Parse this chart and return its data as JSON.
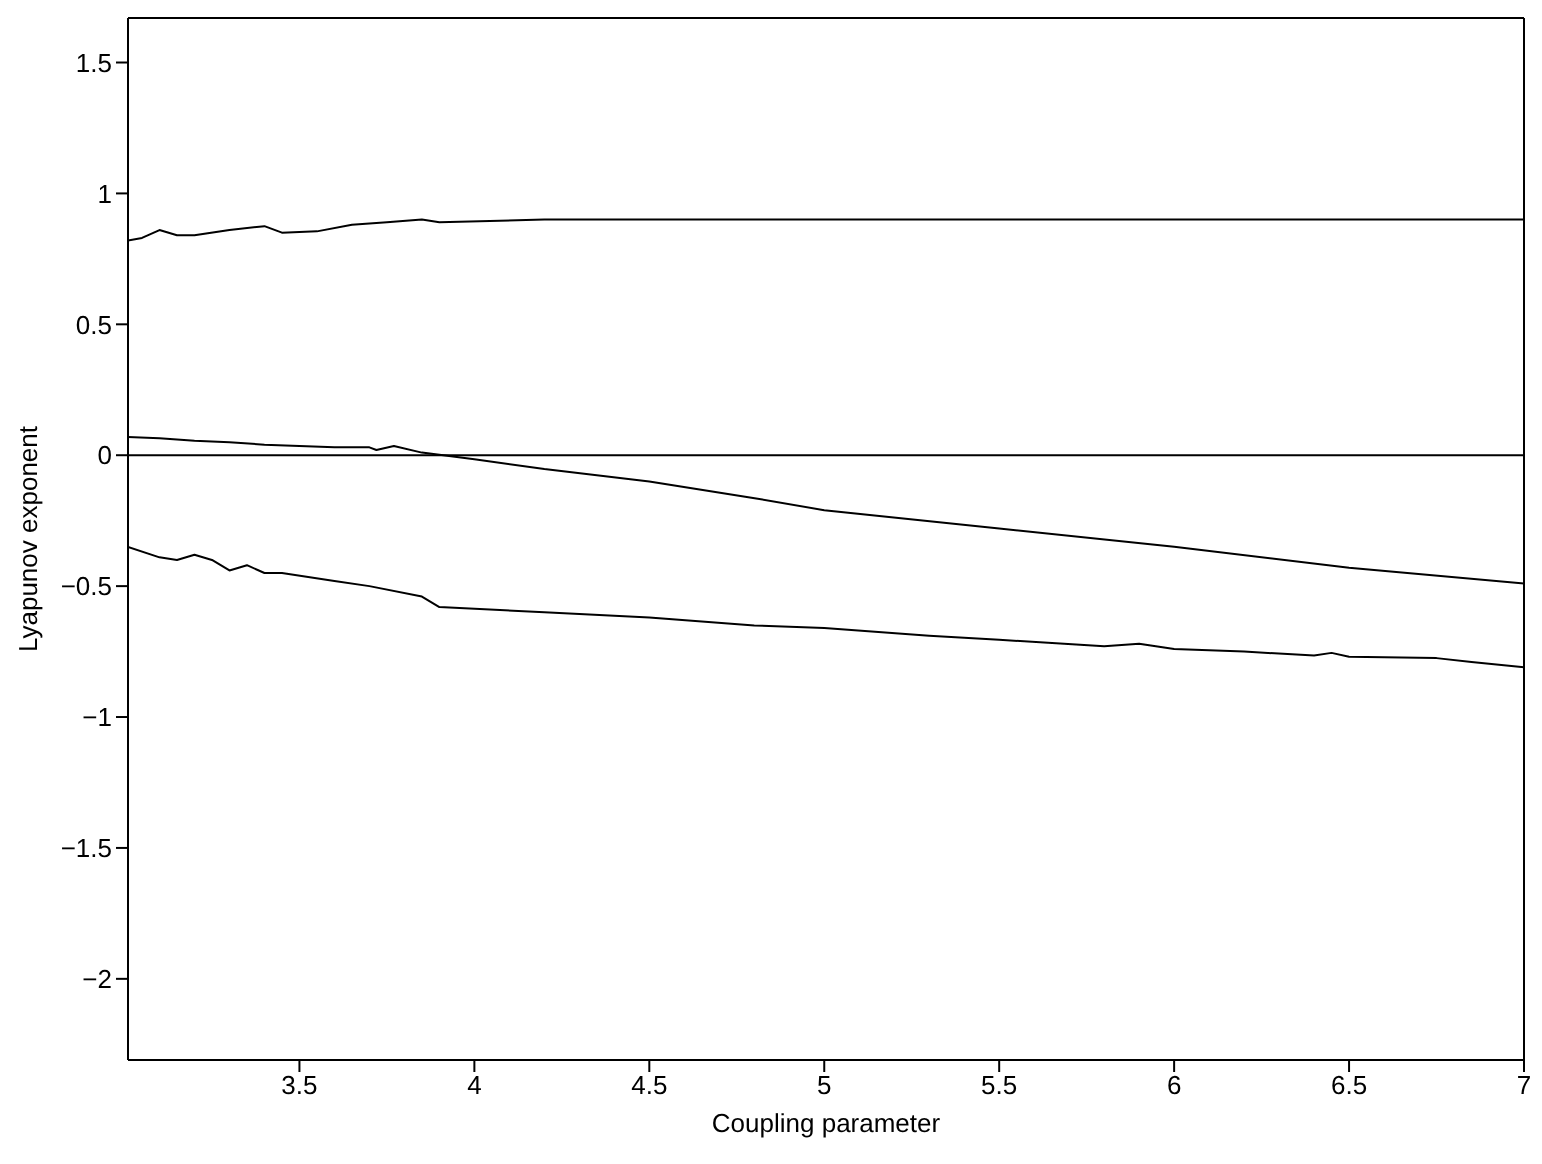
{
  "chart_data": {
    "type": "line",
    "xlabel": "Coupling parameter",
    "ylabel": "Lyapunov exponent",
    "xlim": [
      3.01,
      7
    ],
    "ylim": [
      -2.31,
      1.67
    ],
    "xticks": [
      3.5,
      4,
      4.5,
      5,
      5.5,
      6,
      6.5,
      7
    ],
    "yticks": [
      -2,
      -1.5,
      -1,
      -0.5,
      0,
      0.5,
      1,
      1.5
    ],
    "grid": false,
    "marker": "none",
    "line_style": "solid",
    "ref_lines": [
      {
        "axis": "y",
        "value": 0,
        "color": "#000000"
      }
    ],
    "series": [
      {
        "color": "#000000",
        "x": [
          3.01,
          3.05,
          3.1,
          3.15,
          3.2,
          3.3,
          3.4,
          3.45,
          3.55,
          3.65,
          3.75,
          3.85,
          3.9,
          4.2,
          4.5,
          5,
          5.5,
          6,
          6.5,
          7
        ],
        "values": [
          0.82,
          0.83,
          0.86,
          0.84,
          0.84,
          0.86,
          0.875,
          0.85,
          0.855,
          0.88,
          0.89,
          0.9,
          0.89,
          0.9,
          0.9,
          0.9,
          0.9,
          0.9,
          0.9,
          0.9
        ]
      },
      {
        "color": "#000000",
        "x": [
          3.01,
          3.1,
          3.2,
          3.3,
          3.4,
          3.5,
          3.6,
          3.7,
          3.72,
          3.77,
          3.85,
          4,
          4.2,
          4.5,
          4.81,
          5,
          5.5,
          6,
          6.5,
          7
        ],
        "values": [
          0.07,
          0.065,
          0.055,
          0.05,
          0.04,
          0.035,
          0.03,
          0.03,
          0.02,
          0.035,
          0.01,
          -0.015,
          -0.053,
          -0.1,
          -0.166,
          -0.21,
          -0.28,
          -0.35,
          -0.43,
          -0.49
        ]
      },
      {
        "color": "#000000",
        "x": [
          3.01,
          3.1,
          3.15,
          3.2,
          3.25,
          3.3,
          3.35,
          3.4,
          3.45,
          3.6,
          3.7,
          3.85,
          3.9,
          4.2,
          4.5,
          4.8,
          5,
          5.3,
          5.5,
          5.8,
          5.9,
          6,
          6.2,
          6.4,
          6.45,
          6.5,
          6.75,
          6.85,
          7
        ],
        "values": [
          -0.35,
          -0.39,
          -0.4,
          -0.38,
          -0.4,
          -0.44,
          -0.42,
          -0.45,
          -0.45,
          -0.48,
          -0.5,
          -0.54,
          -0.58,
          -0.6,
          -0.62,
          -0.65,
          -0.66,
          -0.69,
          -0.705,
          -0.73,
          -0.72,
          -0.74,
          -0.75,
          -0.765,
          -0.755,
          -0.77,
          -0.775,
          -0.79,
          -0.81
        ]
      }
    ]
  }
}
